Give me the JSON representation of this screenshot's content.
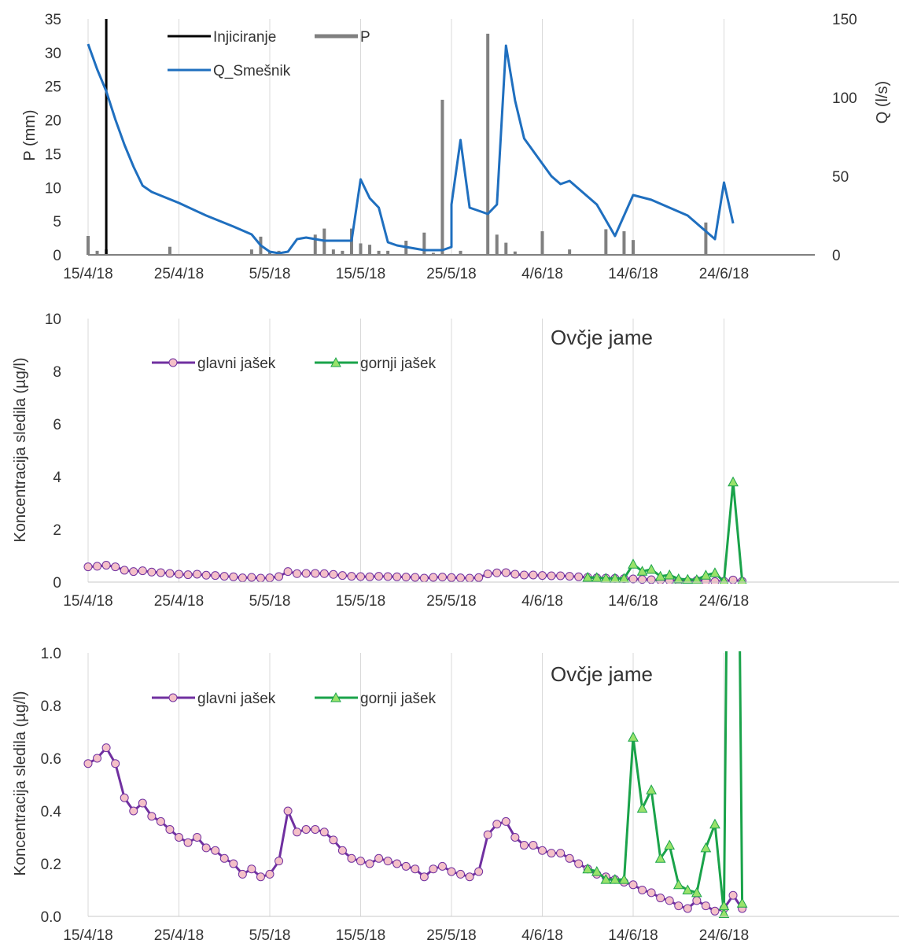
{
  "chart_data": [
    {
      "type": "bar+line",
      "title": "",
      "xlabel": "",
      "ylabel": "P (mm)",
      "y2label": "Q (l/s)",
      "xlim": [
        "2018-04-15",
        "2018-06-26"
      ],
      "xticks": [
        "15/4/18",
        "25/4/18",
        "5/5/18",
        "15/5/18",
        "25/5/18",
        "4/6/18",
        "14/6/18",
        "24/6/18"
      ],
      "ylim": [
        0,
        35
      ],
      "yticks": [
        "0",
        "5",
        "10",
        "15",
        "20",
        "25",
        "30",
        "35"
      ],
      "y2lim": [
        0,
        150
      ],
      "y2ticks": [
        "0",
        "50",
        "100",
        "150"
      ],
      "grid": "vertical",
      "legend": {
        "position": "top-left",
        "entries": [
          "Injiciranje",
          "P",
          "Q_Smešnik"
        ]
      },
      "colors": {
        "P": "#808080",
        "Q_Smešnik": "#1f6fbf",
        "Injiciranje": "#000000"
      },
      "injection": {
        "name": "Injiciranje",
        "x": "2018-04-17",
        "y_to": 35
      },
      "series": [
        {
          "name": "P",
          "kind": "bar",
          "axis": "left",
          "x": [
            "2018-04-15",
            "2018-04-16",
            "2018-04-17",
            "2018-04-24",
            "2018-05-03",
            "2018-05-04",
            "2018-05-05",
            "2018-05-06",
            "2018-05-10",
            "2018-05-11",
            "2018-05-12",
            "2018-05-13",
            "2018-05-14",
            "2018-05-15",
            "2018-05-16",
            "2018-05-17",
            "2018-05-18",
            "2018-05-20",
            "2018-05-22",
            "2018-05-23",
            "2018-05-24",
            "2018-05-26",
            "2018-05-29",
            "2018-05-30",
            "2018-05-31",
            "2018-06-01",
            "2018-06-04",
            "2018-06-07",
            "2018-06-11",
            "2018-06-13",
            "2018-06-14",
            "2018-06-22"
          ],
          "values": [
            2.8,
            0.6,
            0.8,
            1.2,
            0.8,
            2.7,
            0.5,
            0.6,
            3.0,
            3.9,
            0.8,
            0.6,
            3.9,
            1.7,
            1.5,
            0.6,
            0.6,
            2.1,
            3.3,
            0.3,
            23.0,
            0.6,
            32.8,
            3.0,
            1.8,
            0.5,
            3.5,
            0.8,
            3.8,
            3.5,
            2.2,
            4.8
          ]
        },
        {
          "name": "Q_Smešnik",
          "kind": "line",
          "axis": "right",
          "x": [
            "2018-04-15",
            "2018-04-16",
            "2018-04-17",
            "2018-04-18",
            "2018-04-19",
            "2018-04-20",
            "2018-04-21",
            "2018-04-22",
            "2018-04-25",
            "2018-04-28",
            "2018-05-01",
            "2018-05-03",
            "2018-05-04",
            "2018-05-05",
            "2018-05-06",
            "2018-05-07",
            "2018-05-08",
            "2018-05-09",
            "2018-05-10",
            "2018-05-11",
            "2018-05-13",
            "2018-05-14",
            "2018-05-15",
            "2018-05-16",
            "2018-05-17",
            "2018-05-18",
            "2018-05-19",
            "2018-05-22",
            "2018-05-24",
            "2018-05-25",
            "2018-05-25",
            "2018-05-26",
            "2018-05-27",
            "2018-05-28",
            "2018-05-29",
            "2018-05-30",
            "2018-05-31",
            "2018-06-01",
            "2018-06-02",
            "2018-06-04",
            "2018-06-05",
            "2018-06-06",
            "2018-06-07",
            "2018-06-10",
            "2018-06-12",
            "2018-06-14",
            "2018-06-16",
            "2018-06-20",
            "2018-06-22",
            "2018-06-23",
            "2018-06-24",
            "2018-06-25"
          ],
          "values": [
            134,
            118,
            104,
            86,
            70,
            56,
            44,
            40,
            33,
            25,
            18,
            13,
            6,
            2,
            1,
            2,
            10,
            11,
            10,
            9,
            9,
            9,
            48,
            36,
            30,
            8,
            6,
            3,
            3,
            5,
            32,
            73,
            30,
            28,
            26,
            32,
            133,
            98,
            74,
            58,
            50,
            45,
            47,
            32,
            12,
            38,
            35,
            25,
            15,
            10,
            46,
            20
          ]
        }
      ]
    },
    {
      "type": "line",
      "title": "Ovčje jame",
      "xlabel": "",
      "ylabel": "Koncentracija sledila (µg/l)",
      "xlim": [
        "2018-04-15",
        "2018-06-26"
      ],
      "xticks": [
        "15/4/18",
        "25/4/18",
        "5/5/18",
        "15/5/18",
        "25/5/18",
        "4/6/18",
        "14/6/18",
        "24/6/18"
      ],
      "ylim": [
        0,
        10
      ],
      "yticks": [
        "0",
        "2",
        "4",
        "6",
        "8",
        "10"
      ],
      "grid": "vertical",
      "legend": {
        "position": "top-left",
        "entries": [
          "glavni jašek",
          "gornji jašek"
        ]
      },
      "colors": {
        "glavni jašek": "#7030a0",
        "glavni jašek_marker": "#f4c0c8",
        "gornji jašek": "#1aa34a",
        "gornji jašek_marker": "#99e26b"
      },
      "series_ref": "shared"
    },
    {
      "type": "line",
      "title": "Ovčje jame",
      "xlabel": "",
      "ylabel": "Koncentracija sledila (µg/l)",
      "xlim": [
        "2018-04-15",
        "2018-06-26"
      ],
      "xticks": [
        "15/4/18",
        "25/4/18",
        "5/5/18",
        "15/5/18",
        "25/5/18",
        "4/6/18",
        "14/6/18",
        "24/6/18"
      ],
      "ylim": [
        0,
        1
      ],
      "yticks": [
        "0.0",
        "0.2",
        "0.4",
        "0.6",
        "0.8",
        "1.0"
      ],
      "grid": "vertical",
      "legend": {
        "position": "top-left",
        "entries": [
          "glavni jašek",
          "gornji jašek"
        ]
      },
      "colors": {
        "glavni jašek": "#7030a0",
        "glavni jašek_marker": "#f4c0c8",
        "gornji jašek": "#1aa34a",
        "gornji jašek_marker": "#99e26b"
      },
      "series_ref": "shared"
    }
  ],
  "tracer_series": [
    {
      "name": "glavni jašek",
      "x": [
        "2018-04-15",
        "2018-04-16",
        "2018-04-17",
        "2018-04-18",
        "2018-04-19",
        "2018-04-20",
        "2018-04-21",
        "2018-04-22",
        "2018-04-23",
        "2018-04-24",
        "2018-04-25",
        "2018-04-26",
        "2018-04-27",
        "2018-04-28",
        "2018-04-29",
        "2018-04-30",
        "2018-05-01",
        "2018-05-02",
        "2018-05-03",
        "2018-05-04",
        "2018-05-05",
        "2018-05-06",
        "2018-05-07",
        "2018-05-08",
        "2018-05-09",
        "2018-05-10",
        "2018-05-11",
        "2018-05-12",
        "2018-05-13",
        "2018-05-14",
        "2018-05-15",
        "2018-05-16",
        "2018-05-17",
        "2018-05-18",
        "2018-05-19",
        "2018-05-20",
        "2018-05-21",
        "2018-05-22",
        "2018-05-23",
        "2018-05-24",
        "2018-05-25",
        "2018-05-26",
        "2018-05-27",
        "2018-05-28",
        "2018-05-29",
        "2018-05-30",
        "2018-05-31",
        "2018-06-01",
        "2018-06-02",
        "2018-06-03",
        "2018-06-04",
        "2018-06-05",
        "2018-06-06",
        "2018-06-07",
        "2018-06-08",
        "2018-06-09",
        "2018-06-10",
        "2018-06-11",
        "2018-06-12",
        "2018-06-13",
        "2018-06-14",
        "2018-06-15",
        "2018-06-16",
        "2018-06-17",
        "2018-06-18",
        "2018-06-19",
        "2018-06-20",
        "2018-06-21",
        "2018-06-22",
        "2018-06-23",
        "2018-06-24",
        "2018-06-25",
        "2018-06-26"
      ],
      "values": [
        0.58,
        0.6,
        0.64,
        0.58,
        0.45,
        0.4,
        0.43,
        0.38,
        0.36,
        0.33,
        0.3,
        0.28,
        0.3,
        0.26,
        0.25,
        0.22,
        0.2,
        0.16,
        0.18,
        0.15,
        0.16,
        0.21,
        0.4,
        0.32,
        0.33,
        0.33,
        0.32,
        0.29,
        0.25,
        0.22,
        0.21,
        0.2,
        0.22,
        0.21,
        0.2,
        0.19,
        0.18,
        0.15,
        0.18,
        0.19,
        0.17,
        0.16,
        0.15,
        0.17,
        0.31,
        0.35,
        0.36,
        0.3,
        0.27,
        0.27,
        0.25,
        0.24,
        0.24,
        0.22,
        0.2,
        0.18,
        0.16,
        0.15,
        0.14,
        0.13,
        0.12,
        0.1,
        0.09,
        0.07,
        0.06,
        0.04,
        0.03,
        0.06,
        0.04,
        0.02,
        0.03,
        0.08,
        0.03
      ]
    },
    {
      "name": "gornji jašek",
      "x": [
        "2018-06-09",
        "2018-06-10",
        "2018-06-11",
        "2018-06-12",
        "2018-06-13",
        "2018-06-14",
        "2018-06-15",
        "2018-06-16",
        "2018-06-17",
        "2018-06-18",
        "2018-06-19",
        "2018-06-20",
        "2018-06-21",
        "2018-06-22",
        "2018-06-23",
        "2018-06-24",
        "2018-06-24",
        "2018-06-25",
        "2018-06-26"
      ],
      "values": [
        0.18,
        0.17,
        0.14,
        0.14,
        0.14,
        0.68,
        0.41,
        0.48,
        0.22,
        0.27,
        0.12,
        0.1,
        0.09,
        0.26,
        0.35,
        0.01,
        0.04,
        3.8,
        0.05
      ]
    }
  ]
}
